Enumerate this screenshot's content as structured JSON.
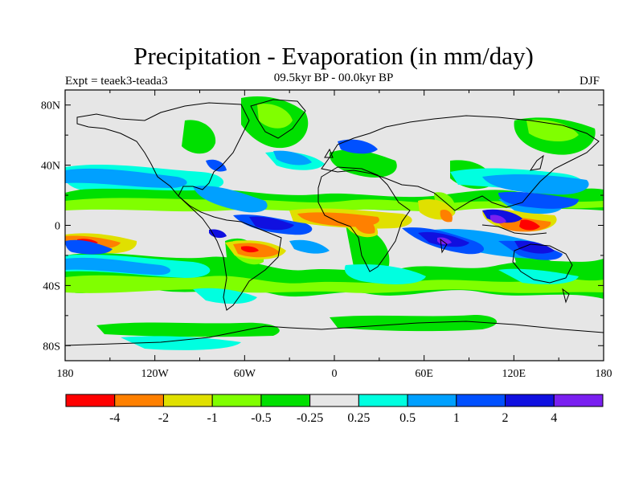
{
  "header": {
    "title": "Precipitation - Evaporation (in mm/day)",
    "subtitle": "09.5kyr BP - 00.0kyr BP",
    "experiment": "Expt = teaek3-teada3",
    "season": "DJF"
  },
  "map": {
    "projection": "cylindrical equidistant",
    "lon_range": [
      -180,
      180
    ],
    "lat_range": [
      -90,
      90
    ],
    "lat_labels": [
      "80N",
      "40N",
      "0",
      "40S",
      "80S"
    ],
    "lat_values": [
      80,
      40,
      0,
      -40,
      -80
    ],
    "lon_labels": [
      "180",
      "120W",
      "60W",
      "0",
      "60E",
      "120E",
      "180"
    ],
    "lon_values": [
      -180,
      -120,
      -60,
      0,
      60,
      120,
      180
    ]
  },
  "legend": {
    "colors": [
      "#ff0000",
      "#ff8000",
      "#e0e000",
      "#80ff00",
      "#00e000",
      "#e6e6e6",
      "#00ffe0",
      "#00a0ff",
      "#0050ff",
      "#1010e0",
      "#7a20f0"
    ],
    "labels": [
      "-4",
      "-2",
      "-1",
      "-0.5",
      "-0.25",
      "0.25",
      "0.5",
      "1",
      "2",
      "4"
    ],
    "neutral_color": "#e6e6e6"
  }
}
